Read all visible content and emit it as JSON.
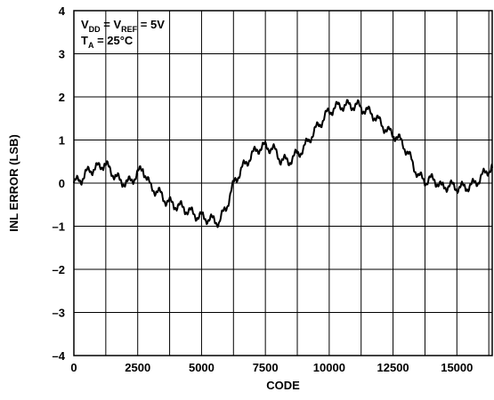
{
  "chart_data": {
    "type": "line",
    "title": "",
    "xlabel": "CODE",
    "ylabel": "INL ERROR (LSB)",
    "xlim": [
      0,
      16384
    ],
    "ylim": [
      -4,
      4
    ],
    "x_ticks": [
      0,
      2500,
      5000,
      7500,
      10000,
      12500,
      15000
    ],
    "x_tick_labels": [
      "0",
      "2500",
      "5000",
      "7500",
      "10000",
      "12500",
      "15000"
    ],
    "y_ticks": [
      -4,
      -3,
      -2,
      -1,
      0,
      1,
      2,
      3,
      4
    ],
    "y_tick_labels": [
      "–4",
      "–3",
      "–2",
      "–1",
      "0",
      "1",
      "2",
      "3",
      "4"
    ],
    "grid": true,
    "annotation": {
      "line1": {
        "v1": "V",
        "sub1": "DD",
        "eq1": " = V",
        "sub2": "REF",
        "rest": " = 5V"
      },
      "line2": {
        "t": "T",
        "sub": "A",
        "rest": " = 25°C"
      }
    },
    "series": [
      {
        "color": "#000000",
        "x": [
          0,
          300,
          600,
          900,
          1200,
          1500,
          1800,
          2100,
          2400,
          2700,
          3000,
          3300,
          3600,
          3900,
          4200,
          4500,
          4800,
          5100,
          5400,
          5700,
          6000,
          6300,
          6600,
          6900,
          7200,
          7500,
          7800,
          8100,
          8400,
          8700,
          9000,
          9300,
          9600,
          9900,
          10200,
          10500,
          10800,
          11100,
          11400,
          11700,
          12000,
          12300,
          12600,
          12900,
          13200,
          13500,
          13800,
          14100,
          14400,
          14700,
          15000,
          15300,
          15600,
          15900,
          16200,
          16383
        ],
        "y": [
          0.0,
          0.1,
          0.3,
          0.35,
          0.45,
          0.25,
          0.05,
          0.0,
          0.15,
          0.35,
          -0.1,
          -0.2,
          -0.4,
          -0.5,
          -0.55,
          -0.65,
          -0.75,
          -0.8,
          -0.85,
          -0.9,
          -0.5,
          0.05,
          0.35,
          0.6,
          0.8,
          0.85,
          0.8,
          0.55,
          0.5,
          0.65,
          0.8,
          1.1,
          1.35,
          1.6,
          1.75,
          1.8,
          1.8,
          1.8,
          1.7,
          1.6,
          1.4,
          1.2,
          1.1,
          0.9,
          0.55,
          0.15,
          0.05,
          0.1,
          -0.1,
          -0.05,
          -0.1,
          -0.1,
          -0.05,
          0.1,
          0.3,
          0.35
        ]
      }
    ]
  }
}
